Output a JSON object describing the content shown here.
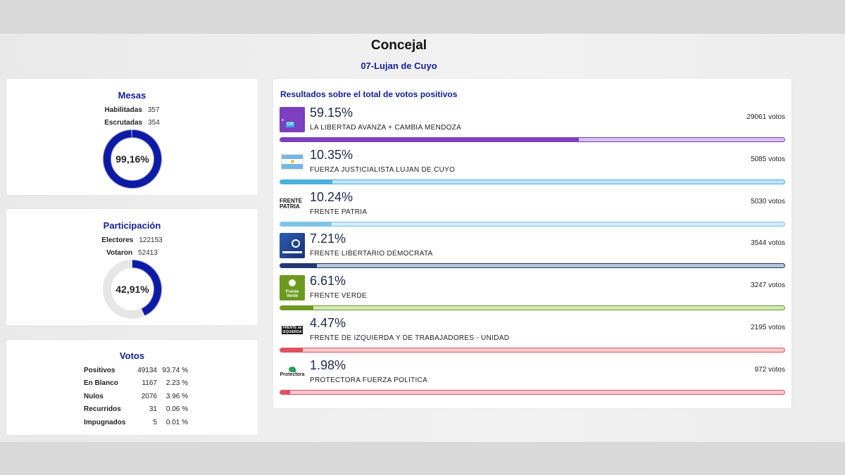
{
  "header": {
    "title": "Concejal",
    "subtitle": "07-Lujan de Cuyo"
  },
  "mesas": {
    "title": "Mesas",
    "habilitadas_label": "Habilitadas",
    "habilitadas": "357",
    "escrutadas_label": "Escrutadas",
    "escrutadas": "354",
    "percent_label": "99,16%",
    "fraction": 0.9916
  },
  "participacion": {
    "title": "Participación",
    "electores_label": "Electores",
    "electores": "122153",
    "votaron_label": "Votaron",
    "votaron": "52413",
    "percent_label": "42,91%",
    "fraction": 0.4291
  },
  "votos": {
    "title": "Votos",
    "rows": [
      {
        "label": "Positivos",
        "count": "49134",
        "percent": "93.74 %"
      },
      {
        "label": "En Blanco",
        "count": "1167",
        "percent": "2.23 %"
      },
      {
        "label": "Nulos",
        "count": "2076",
        "percent": "3.96 %"
      },
      {
        "label": "Recurridos",
        "count": "31",
        "percent": "0.06 %"
      },
      {
        "label": "Impugnados",
        "count": "5",
        "percent": "0.01 %"
      }
    ]
  },
  "results": {
    "title": "Resultados sobre el total de votos positivos",
    "parties": [
      {
        "percent": "59.15%",
        "fraction": 0.5915,
        "name": "LA LIBERTAD AVANZA + CAMBIA MENDOZA",
        "votes": "29061 votos",
        "color": "#7b3fbf",
        "light": "#d6c2ee",
        "logo_text": "CN",
        "logo": "lla-cm"
      },
      {
        "percent": "10.35%",
        "fraction": 0.1035,
        "name": "FUERZA JUSTICIALISTA LUJAN DE CUYO",
        "votes": "5085 votos",
        "color": "#4ab0dd",
        "light": "#bfe4f4",
        "logo_text": "",
        "logo": "argentina-flag"
      },
      {
        "percent": "10.24%",
        "fraction": 0.1024,
        "name": "FRENTE PATRIA",
        "votes": "5030 votos",
        "color": "#7fc4e8",
        "light": "#d2ecf8",
        "logo_text": "FRENTE PATRIA",
        "logo": "frente-patria"
      },
      {
        "percent": "7.21%",
        "fraction": 0.0721,
        "name": "FRENTE LIBERTARIO DEMOCRATA",
        "votes": "3544 votos",
        "color": "#22386e",
        "light": "#b8c4dc",
        "logo_text": "",
        "logo": "fld"
      },
      {
        "percent": "6.61%",
        "fraction": 0.0661,
        "name": "FRENTE VERDE",
        "votes": "3247 votos",
        "color": "#6b9a1f",
        "light": "#d6e8b8",
        "logo_text": "Frente Verde",
        "logo": "frente-verde"
      },
      {
        "percent": "4.47%",
        "fraction": 0.0447,
        "name": "FRENTE DE IZQUIERDA Y DE TRABAJADORES - UNIDAD",
        "votes": "2195 votos",
        "color": "#e0505f",
        "light": "#f6c9cd",
        "logo_text": "FRENTE de IZQUIERDA",
        "logo": "fit"
      },
      {
        "percent": "1.98%",
        "fraction": 0.0198,
        "name": "PROTECTORA FUERZA POLITICA",
        "votes": "972 votos",
        "color": "#e0505f",
        "light": "#f6c9cd",
        "logo_text": "Protectora",
        "logo": "protectora"
      }
    ]
  }
}
